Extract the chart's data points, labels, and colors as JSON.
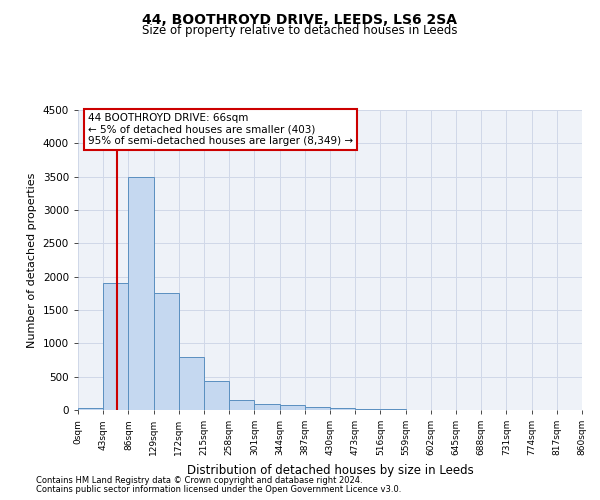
{
  "title": "44, BOOTHROYD DRIVE, LEEDS, LS6 2SA",
  "subtitle": "Size of property relative to detached houses in Leeds",
  "xlabel": "Distribution of detached houses by size in Leeds",
  "ylabel": "Number of detached properties",
  "footnote1": "Contains HM Land Registry data © Crown copyright and database right 2024.",
  "footnote2": "Contains public sector information licensed under the Open Government Licence v3.0.",
  "annotation_title": "44 BOOTHROYD DRIVE: 66sqm",
  "annotation_line1": "← 5% of detached houses are smaller (403)",
  "annotation_line2": "95% of semi-detached houses are larger (8,349) →",
  "property_line_x": 66,
  "bin_edges": [
    0,
    43,
    86,
    129,
    172,
    215,
    258,
    301,
    344,
    387,
    430,
    473,
    516,
    559,
    602,
    645,
    688,
    731,
    774,
    817,
    860
  ],
  "bar_heights": [
    30,
    1900,
    3500,
    1750,
    800,
    430,
    150,
    90,
    70,
    50,
    30,
    20,
    15,
    0,
    0,
    0,
    0,
    0,
    0,
    0
  ],
  "bar_color": "#c5d8f0",
  "bar_edge_color": "#5a8fc0",
  "property_line_color": "#cc0000",
  "annotation_box_color": "#cc0000",
  "grid_color": "#d0d8e8",
  "background_color": "#eef2f8",
  "ylim": [
    0,
    4500
  ],
  "yticks": [
    0,
    500,
    1000,
    1500,
    2000,
    2500,
    3000,
    3500,
    4000,
    4500
  ]
}
